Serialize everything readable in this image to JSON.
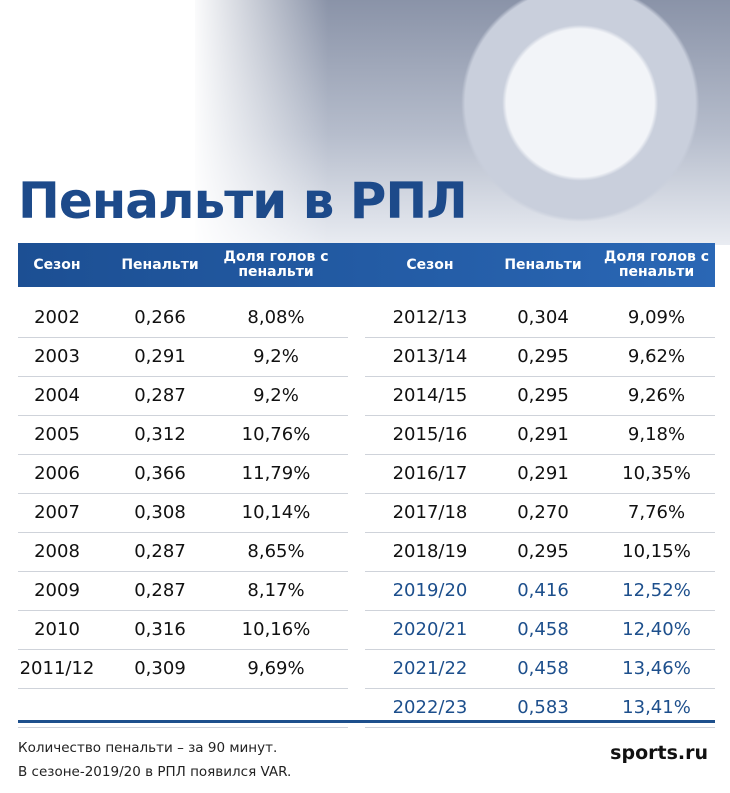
{
  "title": "Пенальти в РПЛ",
  "table": {
    "headers": [
      "Сезон",
      "Пенальти",
      "Доля голов с пенальти"
    ],
    "left_rows": [
      [
        "2002",
        "0,266",
        "8,08%"
      ],
      [
        "2003",
        "0,291",
        "9,2%"
      ],
      [
        "2004",
        "0,287",
        "9,2%"
      ],
      [
        "2005",
        "0,312",
        "10,76%"
      ],
      [
        "2006",
        "0,366",
        "11,79%"
      ],
      [
        "2007",
        "0,308",
        "10,14%"
      ],
      [
        "2008",
        "0,287",
        "8,65%"
      ],
      [
        "2009",
        "0,287",
        "8,17%"
      ],
      [
        "2010",
        "0,316",
        "10,16%"
      ],
      [
        "2011/12",
        "0,309",
        "9,69%"
      ]
    ],
    "right_rows": [
      [
        "2012/13",
        "0,304",
        "9,09%"
      ],
      [
        "2013/14",
        "0,295",
        "9,62%"
      ],
      [
        "2014/15",
        "0,295",
        "9,26%"
      ],
      [
        "2015/16",
        "0,291",
        "9,18%"
      ],
      [
        "2016/17",
        "0,291",
        "10,35%"
      ],
      [
        "2017/18",
        "0,270",
        "7,76%"
      ],
      [
        "2018/19",
        "0,295",
        "10,15%"
      ],
      [
        "2019/20",
        "0,416",
        "12,52%"
      ],
      [
        "2020/21",
        "0,458",
        "12,40%"
      ],
      [
        "2021/22",
        "0,458",
        "13,46%"
      ],
      [
        "2022/23",
        "0,583",
        "13,41%"
      ]
    ],
    "highlight": {
      "color": "#1d4f8c",
      "rows": [
        7,
        8,
        9,
        10
      ]
    }
  },
  "footer": {
    "notes": [
      "Количество пенальти – за 90 минут.",
      "В сезоне-2019/20 в РПЛ появился VAR."
    ],
    "logo": "sports.ru"
  }
}
